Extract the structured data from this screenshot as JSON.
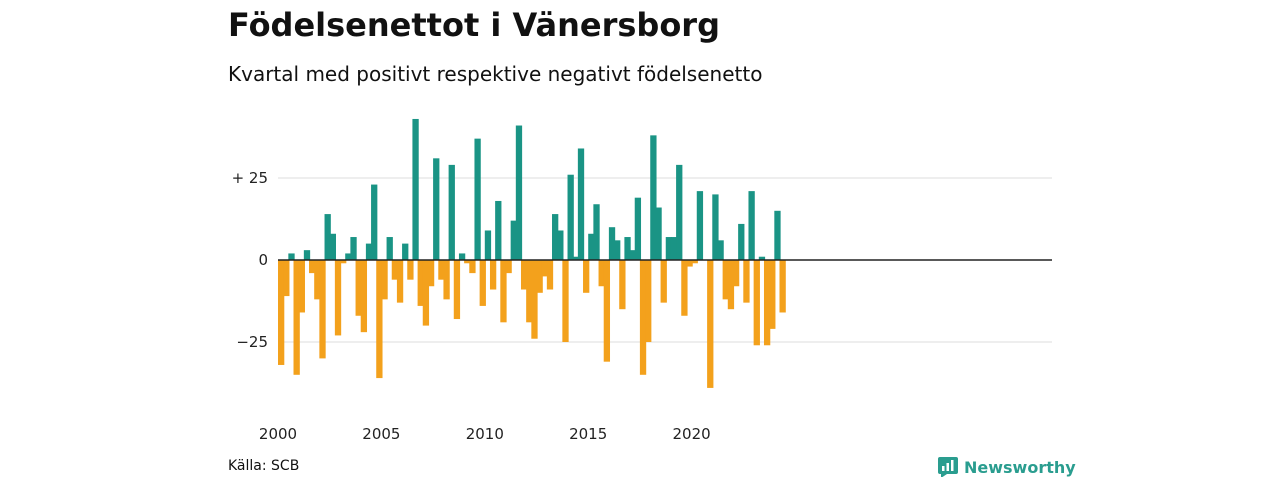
{
  "title": "Födelsenettot i Vänersborg",
  "subtitle": "Kvartal med positivt respektive negativt födelsenetto",
  "source": "Källa: SCB",
  "brand": "Newsworthy",
  "chart_data": {
    "type": "bar",
    "title": "Födelsenettot i Vänersborg",
    "subtitle": "Kvartal med positivt respektive negativt födelsenetto",
    "x_start": 2000,
    "periods_per_year": 4,
    "y_ticks": [
      {
        "value": 25,
        "label": "+ 25"
      },
      {
        "value": 0,
        "label": "0"
      },
      {
        "value": -25,
        "label": "−25"
      }
    ],
    "x_ticks": [
      {
        "value": 2000,
        "label": "2000"
      },
      {
        "value": 2005,
        "label": "2005"
      },
      {
        "value": 2010,
        "label": "2010"
      },
      {
        "value": 2015,
        "label": "2015"
      },
      {
        "value": 2020,
        "label": "2020"
      }
    ],
    "ylim": [
      -40,
      44
    ],
    "colors": {
      "positive": "#1a9485",
      "negative": "#f3a11c"
    },
    "values": [
      -32,
      -11,
      2,
      -35,
      -16,
      3,
      -4,
      -12,
      -30,
      14,
      8,
      -23,
      -1,
      2,
      7,
      -17,
      -22,
      5,
      23,
      -36,
      -12,
      7,
      -6,
      -13,
      5,
      -6,
      43,
      -14,
      -20,
      -8,
      31,
      -6,
      -12,
      29,
      -18,
      2,
      -1,
      -4,
      37,
      -14,
      9,
      -9,
      18,
      -19,
      -4,
      12,
      41,
      -9,
      -19,
      -24,
      -10,
      -5,
      -9,
      14,
      9,
      -25,
      26,
      1,
      34,
      -10,
      8,
      17,
      -8,
      -31,
      10,
      6,
      -15,
      7,
      3,
      19,
      -35,
      -25,
      38,
      16,
      -13,
      7,
      7,
      29,
      -17,
      -2,
      -1,
      21,
      0,
      -39,
      20,
      6,
      -12,
      -15,
      -8,
      11,
      -13,
      21,
      -26,
      1,
      -26,
      -21,
      15,
      -16
    ]
  }
}
